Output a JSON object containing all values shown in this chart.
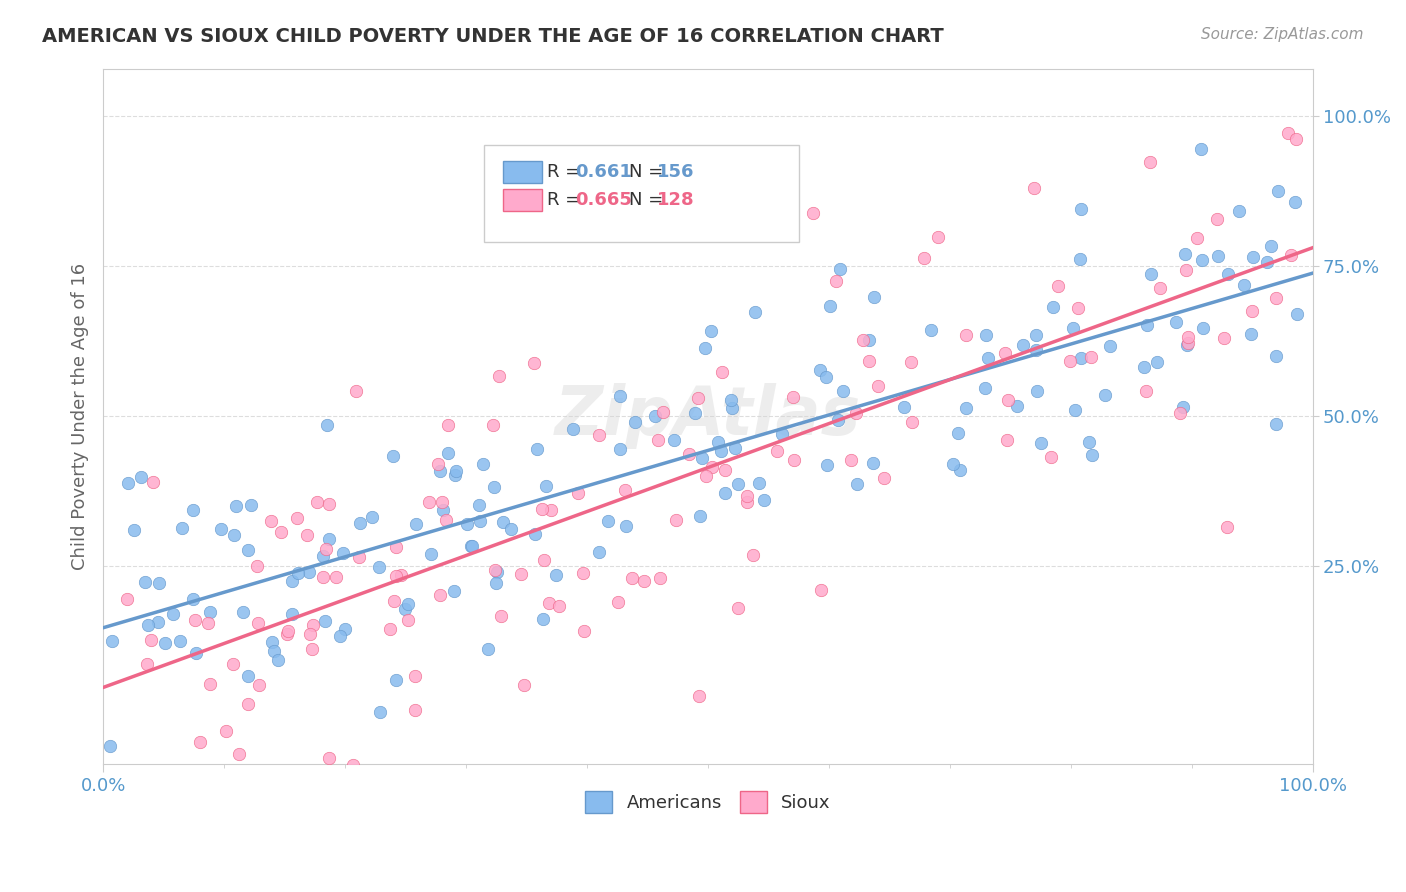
{
  "title": "AMERICAN VS SIOUX CHILD POVERTY UNDER THE AGE OF 16 CORRELATION CHART",
  "source": "Source: ZipAtlas.com",
  "ylabel": "Child Poverty Under the Age of 16",
  "xlabel": "",
  "xlim": [
    0.0,
    1.0
  ],
  "ylim": [
    -0.05,
    1.05
  ],
  "x_tick_labels": [
    "0.0%",
    "100.0%"
  ],
  "y_tick_labels": [
    "25.0%",
    "50.0%",
    "75.0%",
    "100.0%"
  ],
  "y_tick_positions": [
    0.25,
    0.5,
    0.75,
    1.0
  ],
  "american_color": "#88bbee",
  "sioux_color": "#ffaacc",
  "american_line_color": "#6699cc",
  "sioux_line_color": "#ee6688",
  "legend_r_american": "R = 0.661",
  "legend_n_american": "N = 156",
  "legend_r_sioux": "R = 0.665",
  "legend_n_sioux": "N = 128",
  "american_r": 0.661,
  "sioux_r": 0.665,
  "american_n": 156,
  "sioux_n": 128,
  "watermark": "ZipAtlas",
  "background_color": "#ffffff",
  "grid_color": "#dddddd",
  "title_color": "#333333",
  "axis_label_color": "#5599cc",
  "american_intercept": 0.12,
  "american_slope": 0.62,
  "sioux_intercept": 0.05,
  "sioux_slope": 0.72
}
